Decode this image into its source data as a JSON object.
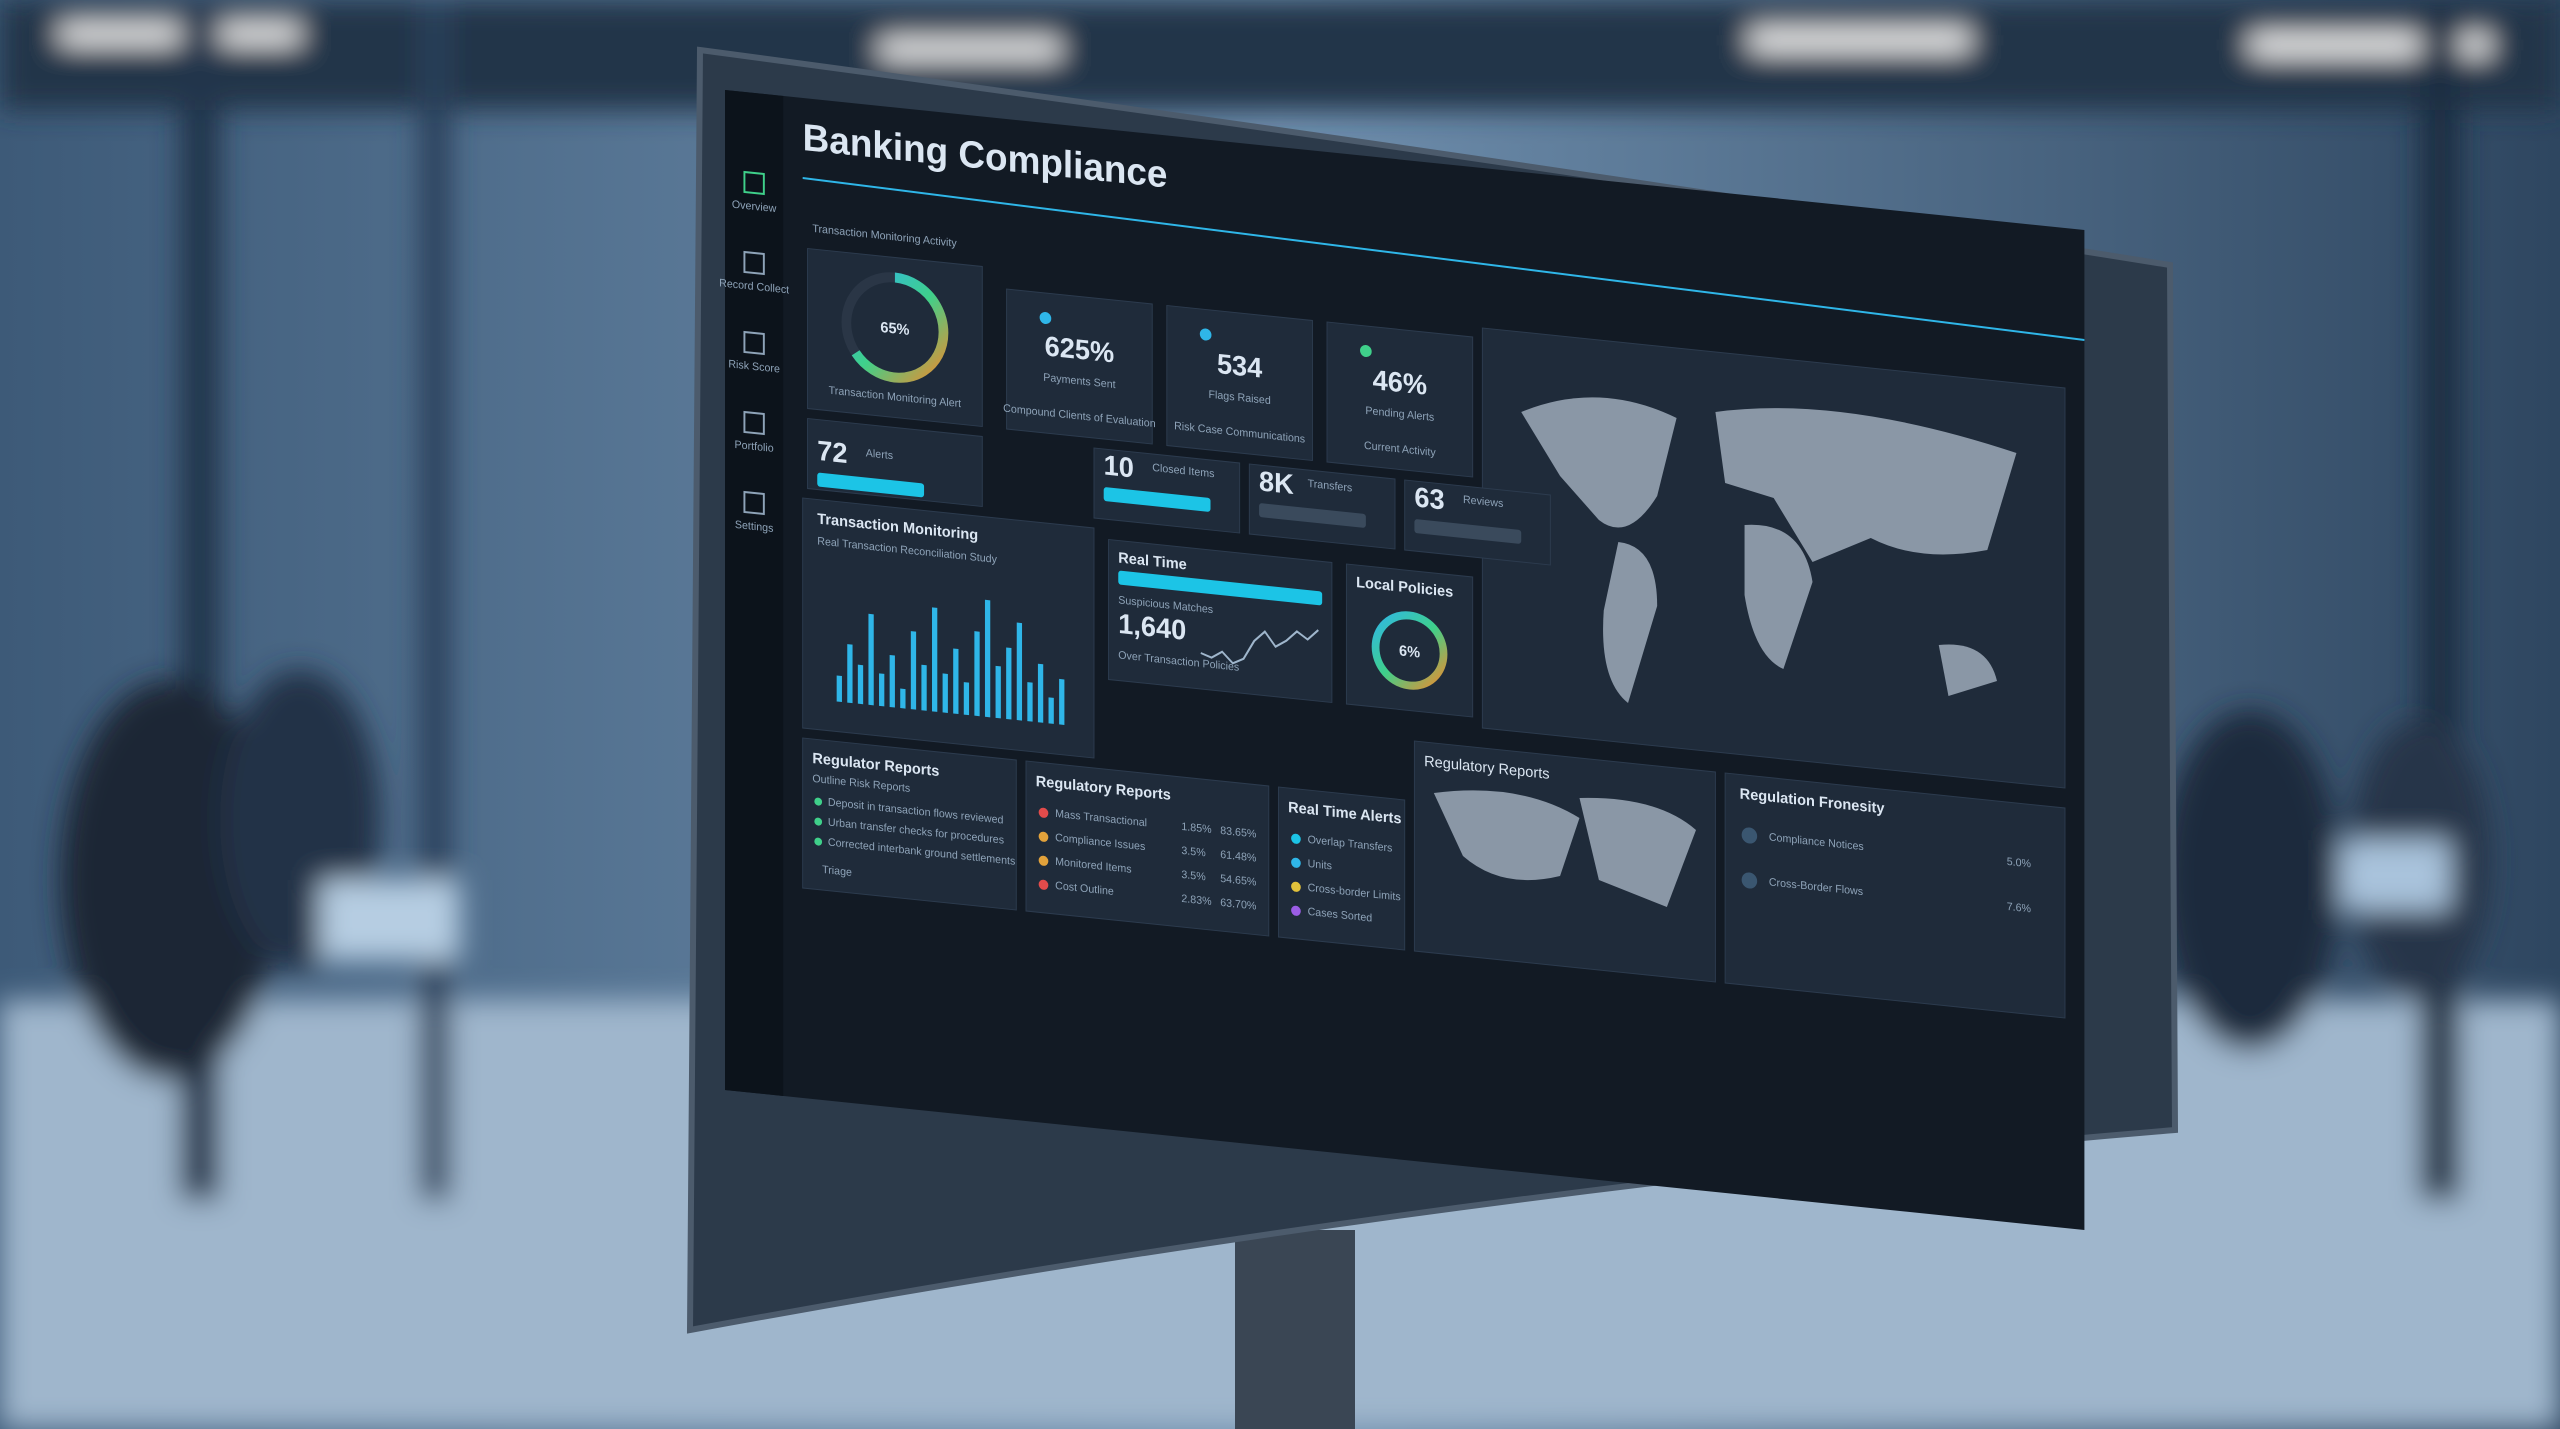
{
  "header": {
    "title": "Banking Compliance",
    "subtitle": "Transaction Monitoring Activity",
    "nav": [
      "Overview",
      "Record Collect",
      "Risk Score",
      "Portfolio",
      "Settings"
    ]
  },
  "gauge": {
    "value": 65,
    "label": "65%",
    "caption": "Transaction Monitoring Alert"
  },
  "kpis": [
    {
      "value": "625%",
      "label": "Payments Sent",
      "caption": "Compound Clients of Evaluation"
    },
    {
      "value": "534",
      "label": "Flags Raised",
      "caption": "Risk Case Communications"
    },
    {
      "value": "46%",
      "label": "Pending Alerts",
      "caption": "Current Activity"
    }
  ],
  "mini_kpis": [
    {
      "value": "72",
      "label": "Alerts"
    },
    {
      "value": "10",
      "label": "Closed Items"
    },
    {
      "value": "8K",
      "label": "Transfers"
    },
    {
      "value": "63",
      "label": "Reviews"
    }
  ],
  "transaction_monitoring": {
    "title": "Transaction Monitoring",
    "subtitle": "Real Transaction Reconciliation Study",
    "ylim": [
      0,
      100
    ],
    "values": [
      20,
      45,
      30,
      70,
      25,
      40,
      15,
      60,
      35,
      80,
      30,
      50,
      25,
      65,
      90,
      40,
      55,
      75,
      30,
      45,
      20,
      35
    ]
  },
  "real_time": {
    "title": "Real Time",
    "value": "1,640",
    "label": "Suspicious Matches",
    "caption": "Over Transaction Policies",
    "ylim": [
      0,
      100
    ],
    "values": [
      30,
      25,
      35,
      20,
      28,
      55,
      70,
      50,
      60,
      75,
      65,
      80
    ]
  },
  "local_policies": {
    "title": "Local Policies",
    "label": "6%"
  },
  "regulatory_reports": {
    "title": "Regulator Reports",
    "subtitle": "Outline Risk Reports",
    "items": [
      "Deposit in transaction flows reviewed",
      "Urban transfer checks for procedures",
      "Corrected interbank ground settlements"
    ],
    "footer": "Triage"
  },
  "regulatory_table": {
    "title": "Regulatory Reports",
    "rows": [
      [
        "Mass Transactional",
        "1.85%",
        "83.65%"
      ],
      [
        "Compliance Issues",
        "3.5%",
        "61.48%"
      ],
      [
        "Monitored Items",
        "3.5%",
        "54.65%"
      ],
      [
        "Cost Outline",
        "2.83%",
        "63.70%"
      ]
    ]
  },
  "alerts": {
    "title": "Real Time Alerts",
    "items": [
      "Overlap Transfers",
      "Units",
      "Cross-border Limits",
      "Cases Sorted"
    ]
  },
  "map_panel": {
    "title": "Regulatory Reports"
  },
  "regulation": {
    "title": "Regulation Fronesity",
    "rows": [
      [
        "Compliance Notices",
        "5.0%"
      ],
      [
        "Cross-Border Flows",
        "7.6%"
      ]
    ]
  }
}
